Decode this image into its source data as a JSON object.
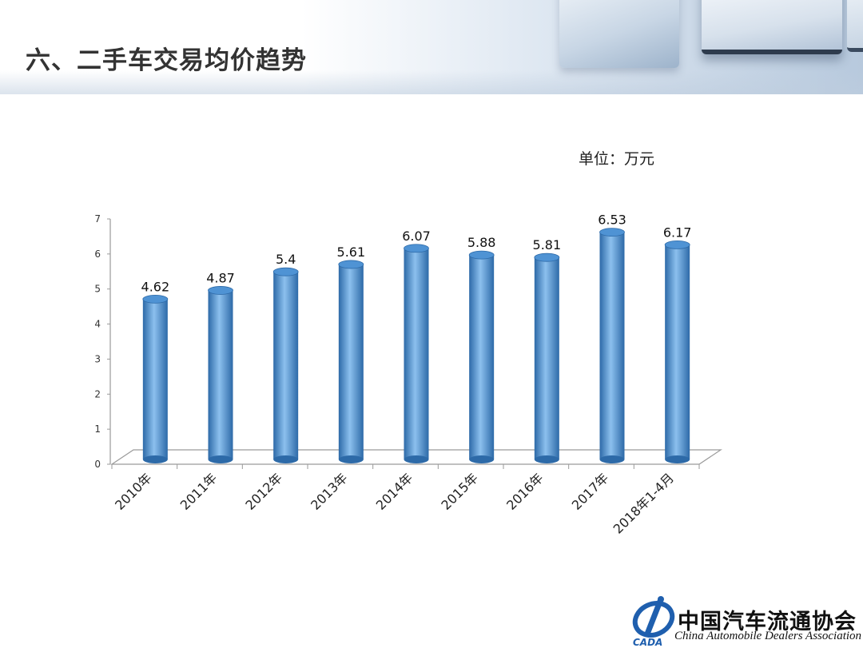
{
  "page": {
    "title": "六、二手车交易均价趋势",
    "unit": "单位：万元"
  },
  "logo": {
    "name_cn": "中国汽车流通协会",
    "name_en": "China Automobile Dealers Association",
    "abbr": "CADA"
  },
  "colors": {
    "bar": "#4f93d4",
    "bar_dark": "#2d6aa8",
    "bar_light": "#8cc0ee",
    "axis": "#9a9a9a"
  },
  "chart_data": {
    "type": "bar",
    "style": "3d-cylinder",
    "categories": [
      "2010年",
      "2011年",
      "2012年",
      "2013年",
      "2014年",
      "2015年",
      "2016年",
      "2017年",
      "2018年1-4月"
    ],
    "values": [
      4.62,
      4.87,
      5.4,
      5.61,
      6.07,
      5.88,
      5.81,
      6.53,
      6.17
    ],
    "data_labels": [
      "4.62",
      "4.87",
      "5.4",
      "5.61",
      "6.07",
      "5.88",
      "5.81",
      "6.53",
      "6.17"
    ],
    "yticks": [
      0,
      1,
      2,
      3,
      4,
      5,
      6,
      7
    ],
    "ylim": [
      0,
      7
    ],
    "grid": false,
    "legend": "none"
  }
}
